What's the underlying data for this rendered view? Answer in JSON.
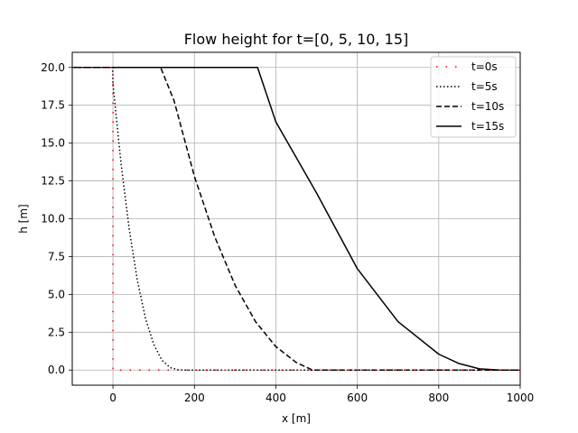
{
  "chart_data": {
    "type": "line",
    "title": "Flow height for t=[0, 5, 10, 15]",
    "xlabel": "x [m]",
    "ylabel": "h [m]",
    "xlim": [
      -100,
      1000
    ],
    "ylim": [
      -1,
      21
    ],
    "xticks": [
      0,
      200,
      400,
      600,
      800,
      1000
    ],
    "xtick_labels": [
      "0",
      "200",
      "400",
      "600",
      "800",
      "1000"
    ],
    "yticks": [
      0,
      2.5,
      5,
      7.5,
      10,
      12.5,
      15,
      17.5,
      20
    ],
    "ytick_labels": [
      "0.0",
      "2.5",
      "5.0",
      "7.5",
      "10.0",
      "12.5",
      "15.0",
      "17.5",
      "20.0"
    ],
    "grid": true,
    "legend_position": "top-right",
    "series": [
      {
        "name": "t=0s",
        "color": "#ff0000",
        "style": "dotted-sparse",
        "points": [
          [
            -100,
            20
          ],
          [
            0,
            20
          ],
          [
            0,
            0
          ],
          [
            1000,
            0
          ]
        ]
      },
      {
        "name": "t=5s",
        "color": "#000000",
        "style": "dotted",
        "points": [
          [
            -100,
            20
          ],
          [
            -1,
            20
          ],
          [
            0,
            18.9
          ],
          [
            20,
            13.6
          ],
          [
            40,
            9.3
          ],
          [
            60,
            5.9
          ],
          [
            80,
            3.4
          ],
          [
            100,
            1.7
          ],
          [
            120,
            0.66
          ],
          [
            140,
            0.17
          ],
          [
            160,
            0.02
          ],
          [
            175,
            0
          ],
          [
            1000,
            0
          ]
        ]
      },
      {
        "name": "t=10s",
        "color": "#000000",
        "style": "dashed",
        "points": [
          [
            -100,
            20
          ],
          [
            117,
            20
          ],
          [
            150,
            17.8
          ],
          [
            200,
            12.8
          ],
          [
            250,
            8.8
          ],
          [
            300,
            5.6
          ],
          [
            350,
            3.2
          ],
          [
            400,
            1.55
          ],
          [
            450,
            0.5
          ],
          [
            490,
            0
          ],
          [
            1000,
            0
          ]
        ]
      },
      {
        "name": "t=15s",
        "color": "#000000",
        "style": "solid",
        "points": [
          [
            -100,
            20
          ],
          [
            355,
            20
          ],
          [
            400,
            16.4
          ],
          [
            500,
            11.7
          ],
          [
            600,
            6.7
          ],
          [
            700,
            3.2
          ],
          [
            800,
            1.05
          ],
          [
            850,
            0.43
          ],
          [
            900,
            0.08
          ],
          [
            950,
            0
          ],
          [
            1000,
            0
          ]
        ]
      }
    ]
  }
}
